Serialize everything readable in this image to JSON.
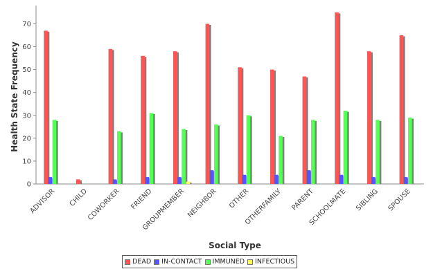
{
  "chart_data": {
    "type": "bar",
    "xlabel": "Social Type",
    "ylabel": "Health State Frequency",
    "ylim": [
      0,
      78
    ],
    "yticks": [
      0,
      10,
      20,
      30,
      40,
      50,
      60,
      70
    ],
    "grid": false,
    "legend_position": "bottom",
    "categories": [
      "ADVISOR",
      "CHILD",
      "COWORKER",
      "FRIEND",
      "GROUPMEMBER",
      "NEIGHBOR",
      "OTHER",
      "OTHERFAMILY",
      "PARENT",
      "SCHOOLMATE",
      "SIBLING",
      "SPOUSE"
    ],
    "series": [
      {
        "name": "DEAD",
        "color": "#ff5555",
        "values": [
          67,
          2,
          59,
          56,
          58,
          70,
          51,
          50,
          47,
          75,
          58,
          65
        ]
      },
      {
        "name": "IN-CONTACT",
        "color": "#5555ff",
        "values": [
          3,
          0,
          2,
          3,
          3,
          6,
          4,
          4,
          6,
          4,
          3,
          3
        ]
      },
      {
        "name": "IMMUNED",
        "color": "#55ff55",
        "values": [
          28,
          0,
          23,
          31,
          24,
          26,
          30,
          21,
          28,
          32,
          28,
          29
        ]
      },
      {
        "name": "INFECTIOUS",
        "color": "#ffff55",
        "values": [
          0,
          0,
          0,
          0,
          1,
          0,
          0,
          0,
          0,
          0,
          0,
          0
        ]
      }
    ]
  }
}
